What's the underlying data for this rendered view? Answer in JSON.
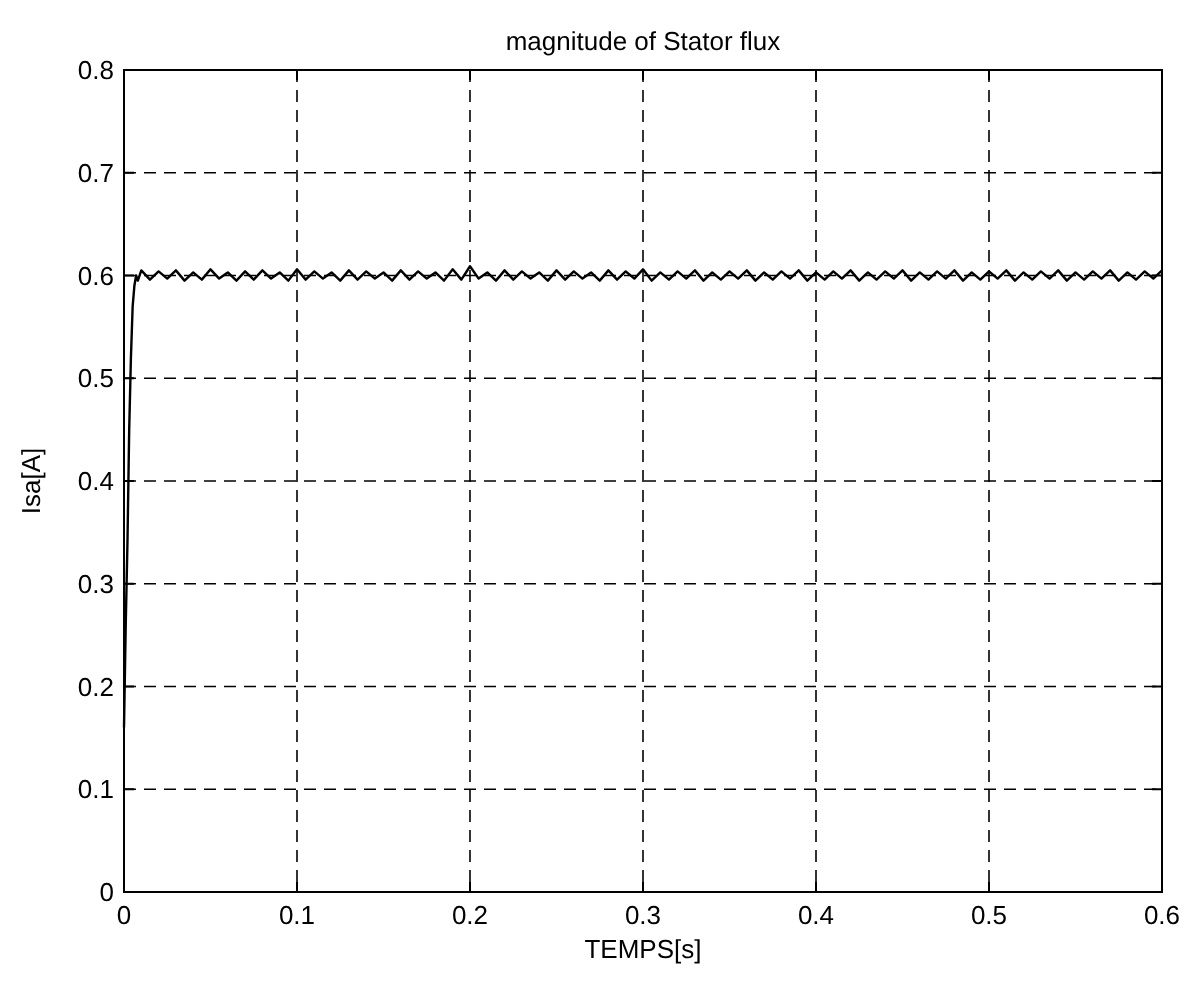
{
  "chart_data": {
    "type": "line",
    "title": "magnitude of Stator flux",
    "xlabel": "TEMPS[s]",
    "ylabel": "Isa[A]",
    "xlim": [
      0,
      0.6
    ],
    "ylim": [
      0,
      0.8
    ],
    "xticks": [
      0,
      0.1,
      0.2,
      0.3,
      0.4,
      0.5,
      0.6
    ],
    "yticks": [
      0,
      0.1,
      0.2,
      0.3,
      0.4,
      0.5,
      0.6,
      0.7,
      0.8
    ],
    "grid": true,
    "line_style": "solid",
    "series": [
      {
        "color": "#000000",
        "x": [
          0,
          0.001,
          0.002,
          0.003,
          0.004,
          0.005,
          0.006,
          0.007,
          0.008,
          0.01,
          0.015,
          0.02,
          0.025,
          0.03,
          0.035,
          0.04,
          0.045,
          0.05,
          0.055,
          0.06,
          0.065,
          0.07,
          0.075,
          0.08,
          0.085,
          0.09,
          0.095,
          0.1,
          0.105,
          0.11,
          0.115,
          0.12,
          0.125,
          0.13,
          0.135,
          0.14,
          0.145,
          0.15,
          0.155,
          0.16,
          0.165,
          0.17,
          0.175,
          0.18,
          0.185,
          0.19,
          0.195,
          0.2,
          0.205,
          0.21,
          0.215,
          0.22,
          0.225,
          0.23,
          0.235,
          0.24,
          0.245,
          0.25,
          0.255,
          0.26,
          0.265,
          0.27,
          0.275,
          0.28,
          0.285,
          0.29,
          0.295,
          0.3,
          0.305,
          0.31,
          0.315,
          0.32,
          0.325,
          0.33,
          0.335,
          0.34,
          0.345,
          0.35,
          0.355,
          0.36,
          0.365,
          0.37,
          0.375,
          0.38,
          0.385,
          0.39,
          0.395,
          0.4,
          0.405,
          0.41,
          0.415,
          0.42,
          0.425,
          0.43,
          0.435,
          0.44,
          0.445,
          0.45,
          0.455,
          0.46,
          0.465,
          0.47,
          0.475,
          0.48,
          0.485,
          0.49,
          0.495,
          0.5,
          0.505,
          0.51,
          0.515,
          0.52,
          0.525,
          0.53,
          0.535,
          0.54,
          0.545,
          0.55,
          0.555,
          0.56,
          0.565,
          0.57,
          0.575,
          0.58,
          0.585,
          0.59,
          0.595,
          0.6
        ],
        "values": [
          0.16,
          0.26,
          0.34,
          0.45,
          0.52,
          0.57,
          0.59,
          0.6,
          0.595,
          0.605,
          0.596,
          0.604,
          0.597,
          0.605,
          0.595,
          0.603,
          0.596,
          0.606,
          0.597,
          0.603,
          0.595,
          0.604,
          0.596,
          0.605,
          0.597,
          0.603,
          0.595,
          0.606,
          0.596,
          0.604,
          0.597,
          0.603,
          0.595,
          0.605,
          0.596,
          0.604,
          0.597,
          0.603,
          0.595,
          0.605,
          0.596,
          0.604,
          0.597,
          0.603,
          0.595,
          0.606,
          0.596,
          0.609,
          0.597,
          0.603,
          0.595,
          0.605,
          0.596,
          0.604,
          0.597,
          0.603,
          0.595,
          0.605,
          0.596,
          0.604,
          0.597,
          0.603,
          0.595,
          0.605,
          0.596,
          0.604,
          0.597,
          0.606,
          0.595,
          0.603,
          0.596,
          0.604,
          0.597,
          0.605,
          0.595,
          0.603,
          0.596,
          0.604,
          0.597,
          0.605,
          0.595,
          0.603,
          0.596,
          0.604,
          0.597,
          0.605,
          0.595,
          0.603,
          0.596,
          0.604,
          0.597,
          0.605,
          0.595,
          0.603,
          0.596,
          0.604,
          0.597,
          0.605,
          0.595,
          0.603,
          0.596,
          0.604,
          0.597,
          0.605,
          0.595,
          0.603,
          0.596,
          0.604,
          0.597,
          0.605,
          0.595,
          0.603,
          0.596,
          0.604,
          0.597,
          0.605,
          0.595,
          0.603,
          0.596,
          0.604,
          0.597,
          0.605,
          0.595,
          0.603,
          0.596,
          0.604,
          0.597,
          0.605
        ]
      }
    ]
  }
}
